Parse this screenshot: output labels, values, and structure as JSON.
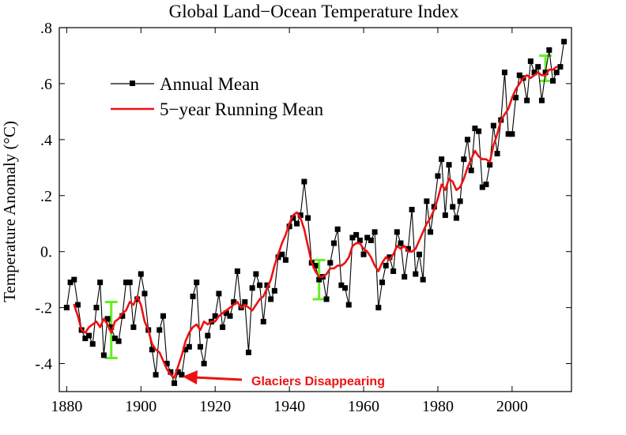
{
  "chart_data": {
    "type": "line",
    "title": "Global Land−Ocean Temperature Index",
    "xlabel": "",
    "ylabel": "Temperature Anomaly (°C)",
    "xlim": [
      1878,
      2016
    ],
    "ylim": [
      -0.5,
      0.8
    ],
    "x_ticks": [
      1880,
      1900,
      1920,
      1940,
      1960,
      1980,
      2000
    ],
    "x_tick_labels": [
      "1880",
      "1900",
      "1920",
      "1940",
      "1960",
      "1980",
      "2000"
    ],
    "y_ticks": [
      0.8,
      0.6,
      0.4,
      0.2,
      0.0,
      -0.2,
      -0.4
    ],
    "y_tick_labels": [
      ".8",
      ".6",
      ".4",
      ".2",
      "0.",
      "-.2",
      "-.4"
    ],
    "legend": {
      "position": "top-left",
      "entries": [
        "Annual Mean",
        "5−year Running Mean"
      ]
    },
    "series": [
      {
        "name": "Annual Mean",
        "color": "#000000",
        "marker": "square",
        "x": [
          1880,
          1881,
          1882,
          1883,
          1884,
          1885,
          1886,
          1887,
          1888,
          1889,
          1890,
          1891,
          1892,
          1893,
          1894,
          1895,
          1896,
          1897,
          1898,
          1899,
          1900,
          1901,
          1902,
          1903,
          1904,
          1905,
          1906,
          1907,
          1908,
          1909,
          1910,
          1911,
          1912,
          1913,
          1914,
          1915,
          1916,
          1917,
          1918,
          1919,
          1920,
          1921,
          1922,
          1923,
          1924,
          1925,
          1926,
          1927,
          1928,
          1929,
          1930,
          1931,
          1932,
          1933,
          1934,
          1935,
          1936,
          1937,
          1938,
          1939,
          1940,
          1941,
          1942,
          1943,
          1944,
          1945,
          1946,
          1947,
          1948,
          1949,
          1950,
          1951,
          1952,
          1953,
          1954,
          1955,
          1956,
          1957,
          1958,
          1959,
          1960,
          1961,
          1962,
          1963,
          1964,
          1965,
          1966,
          1967,
          1968,
          1969,
          1970,
          1971,
          1972,
          1973,
          1974,
          1975,
          1976,
          1977,
          1978,
          1979,
          1980,
          1981,
          1982,
          1983,
          1984,
          1985,
          1986,
          1987,
          1988,
          1989,
          1990,
          1991,
          1992,
          1993,
          1994,
          1995,
          1996,
          1997,
          1998,
          1999,
          2000,
          2001,
          2002,
          2003,
          2004,
          2005,
          2006,
          2007,
          2008,
          2009,
          2010,
          2011,
          2012,
          2013,
          2014
        ],
        "values": [
          -0.2,
          -0.11,
          -0.1,
          -0.19,
          -0.28,
          -0.31,
          -0.3,
          -0.33,
          -0.2,
          -0.11,
          -0.37,
          -0.24,
          -0.27,
          -0.31,
          -0.32,
          -0.23,
          -0.11,
          -0.11,
          -0.27,
          -0.17,
          -0.08,
          -0.15,
          -0.28,
          -0.35,
          -0.44,
          -0.28,
          -0.23,
          -0.4,
          -0.43,
          -0.47,
          -0.43,
          -0.44,
          -0.35,
          -0.34,
          -0.16,
          -0.11,
          -0.34,
          -0.4,
          -0.3,
          -0.25,
          -0.23,
          -0.15,
          -0.27,
          -0.22,
          -0.23,
          -0.18,
          -0.07,
          -0.2,
          -0.18,
          -0.36,
          -0.13,
          -0.08,
          -0.12,
          -0.25,
          -0.12,
          -0.17,
          -0.14,
          -0.02,
          -0.01,
          -0.03,
          0.09,
          0.12,
          0.1,
          0.13,
          0.25,
          0.12,
          -0.04,
          -0.05,
          -0.1,
          -0.09,
          -0.17,
          -0.04,
          0.03,
          0.08,
          -0.12,
          -0.13,
          -0.19,
          0.05,
          0.06,
          0.04,
          -0.01,
          0.05,
          0.04,
          0.07,
          -0.2,
          -0.11,
          -0.05,
          -0.02,
          -0.07,
          0.07,
          0.03,
          -0.09,
          0.01,
          0.15,
          -0.08,
          -0.01,
          -0.1,
          0.18,
          0.07,
          0.16,
          0.27,
          0.33,
          0.13,
          0.31,
          0.16,
          0.12,
          0.18,
          0.33,
          0.4,
          0.29,
          0.44,
          0.43,
          0.23,
          0.24,
          0.31,
          0.45,
          0.35,
          0.47,
          0.64,
          0.42,
          0.42,
          0.55,
          0.63,
          0.62,
          0.54,
          0.68,
          0.64,
          0.66,
          0.54,
          0.64,
          0.72,
          0.61,
          0.64,
          0.66,
          0.75
        ]
      },
      {
        "name": "5−year Running Mean",
        "color": "#ee1111",
        "x": [
          1882,
          1883,
          1884,
          1885,
          1886,
          1887,
          1888,
          1889,
          1890,
          1891,
          1892,
          1893,
          1894,
          1895,
          1896,
          1897,
          1898,
          1899,
          1900,
          1901,
          1902,
          1903,
          1904,
          1905,
          1906,
          1907,
          1908,
          1909,
          1910,
          1911,
          1912,
          1913,
          1914,
          1915,
          1916,
          1917,
          1918,
          1919,
          1920,
          1921,
          1922,
          1923,
          1924,
          1925,
          1926,
          1927,
          1928,
          1929,
          1930,
          1931,
          1932,
          1933,
          1934,
          1935,
          1936,
          1937,
          1938,
          1939,
          1940,
          1941,
          1942,
          1943,
          1944,
          1945,
          1946,
          1947,
          1948,
          1949,
          1950,
          1951,
          1952,
          1953,
          1954,
          1955,
          1956,
          1957,
          1958,
          1959,
          1960,
          1961,
          1962,
          1963,
          1964,
          1965,
          1966,
          1967,
          1968,
          1969,
          1970,
          1971,
          1972,
          1973,
          1974,
          1975,
          1976,
          1977,
          1978,
          1979,
          1980,
          1981,
          1982,
          1983,
          1984,
          1985,
          1986,
          1987,
          1988,
          1989,
          1990,
          1991,
          1992,
          1993,
          1994,
          1995,
          1996,
          1997,
          1998,
          1999,
          2000,
          2001,
          2002,
          2003,
          2004,
          2005,
          2006,
          2007,
          2008,
          2009,
          2010,
          2011,
          2012
        ],
        "values": [
          -0.19,
          -0.23,
          -0.28,
          -0.29,
          -0.27,
          -0.26,
          -0.25,
          -0.27,
          -0.24,
          -0.26,
          -0.29,
          -0.25,
          -0.24,
          -0.22,
          -0.21,
          -0.18,
          -0.19,
          -0.16,
          -0.19,
          -0.25,
          -0.28,
          -0.33,
          -0.35,
          -0.36,
          -0.39,
          -0.42,
          -0.44,
          -0.45,
          -0.41,
          -0.37,
          -0.32,
          -0.29,
          -0.27,
          -0.26,
          -0.28,
          -0.25,
          -0.26,
          -0.25,
          -0.25,
          -0.23,
          -0.22,
          -0.21,
          -0.2,
          -0.19,
          -0.18,
          -0.2,
          -0.19,
          -0.2,
          -0.21,
          -0.19,
          -0.17,
          -0.16,
          -0.13,
          -0.1,
          -0.05,
          -0.01,
          0.03,
          0.06,
          0.1,
          0.13,
          0.14,
          0.12,
          0.08,
          0.02,
          -0.04,
          -0.07,
          -0.09,
          -0.09,
          -0.08,
          -0.06,
          -0.06,
          -0.05,
          -0.05,
          -0.04,
          -0.02,
          0.02,
          0.03,
          0.03,
          0.01,
          0.0,
          -0.02,
          -0.05,
          -0.07,
          -0.04,
          -0.02,
          -0.03,
          -0.01,
          0.02,
          0.01,
          0.02,
          0.0,
          0.0,
          0.01,
          0.04,
          0.07,
          0.1,
          0.12,
          0.15,
          0.19,
          0.24,
          0.22,
          0.26,
          0.25,
          0.22,
          0.23,
          0.26,
          0.3,
          0.33,
          0.36,
          0.34,
          0.33,
          0.33,
          0.32,
          0.38,
          0.42,
          0.47,
          0.49,
          0.51,
          0.55,
          0.58,
          0.6,
          0.62,
          0.63,
          0.62,
          0.63,
          0.64,
          0.63,
          0.63,
          0.65,
          0.65,
          0.66
        ]
      }
    ],
    "error_bars": [
      {
        "x": 1892,
        "low": -0.38,
        "high": -0.18
      },
      {
        "x": 1948,
        "low": -0.17,
        "high": -0.03
      },
      {
        "x": 2009,
        "low": 0.61,
        "high": 0.7
      }
    ],
    "error_bar_color": "#66ee22",
    "annotation": {
      "text": "Glaciers Disappearing",
      "color": "#ee1111",
      "points_to_x": 1911,
      "points_to_y": -0.44
    }
  }
}
